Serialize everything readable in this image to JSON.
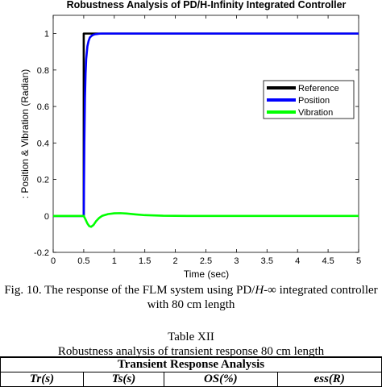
{
  "chart_data": {
    "type": "line",
    "title": "Robustness Analysis of PD/H-Infinity Integrated Controller",
    "xlabel": "Time (sec)",
    "ylabel": ": Position & Vibration (Radian)",
    "xlim": [
      0,
      5
    ],
    "ylim": [
      -0.2,
      1.1
    ],
    "xticks": [
      "0",
      "0.5",
      "1",
      "1.5",
      "2",
      "2.5",
      "3",
      "3.5",
      "4",
      "4.5",
      "5"
    ],
    "yticks": [
      "-0.2",
      "0",
      "0.2",
      "0.4",
      "0.6",
      "0.8",
      "1"
    ],
    "grid": false,
    "legend_position": "right",
    "series": [
      {
        "name": "Reference",
        "color": "#000000",
        "x": [
          0,
          0.5,
          0.5,
          5
        ],
        "y": [
          0,
          0,
          1,
          1
        ]
      },
      {
        "name": "Position",
        "color": "#0000ff",
        "x": [
          0,
          0.5,
          0.51,
          0.52,
          0.53,
          0.54,
          0.56,
          0.58,
          0.6,
          0.63,
          0.66,
          0.7,
          0.75,
          0.8,
          0.9,
          1.0,
          5
        ],
        "y": [
          0,
          0,
          0.4,
          0.65,
          0.78,
          0.86,
          0.93,
          0.96,
          0.978,
          0.988,
          0.994,
          0.997,
          0.999,
          1.0,
          1.0,
          1.0,
          1.0
        ]
      },
      {
        "name": "Vibration",
        "color": "#00ff00",
        "x": [
          0,
          0.5,
          0.53,
          0.56,
          0.59,
          0.62,
          0.66,
          0.7,
          0.75,
          0.8,
          0.9,
          1.0,
          1.1,
          1.2,
          1.35,
          1.5,
          1.8,
          2.2,
          5
        ],
        "y": [
          0,
          0,
          -0.02,
          -0.042,
          -0.056,
          -0.06,
          -0.05,
          -0.03,
          -0.012,
          0.0,
          0.01,
          0.014,
          0.015,
          0.013,
          0.008,
          0.004,
          0.001,
          0.0,
          0.0
        ]
      }
    ]
  },
  "figure_caption": {
    "prefix": "Fig. 10. The response of the FLM system using PD/",
    "h_symbol": "H",
    "suffix_line1": "-∞ integrated controller",
    "line2": "with 80 cm length"
  },
  "table": {
    "title": "Table XII",
    "caption": "Robustness analysis of transient response 80 cm length",
    "section_header": "Transient Response Analysis",
    "columns": [
      "Tr(s)",
      "Ts(s)",
      "OS(%)",
      "ess(R)"
    ]
  }
}
